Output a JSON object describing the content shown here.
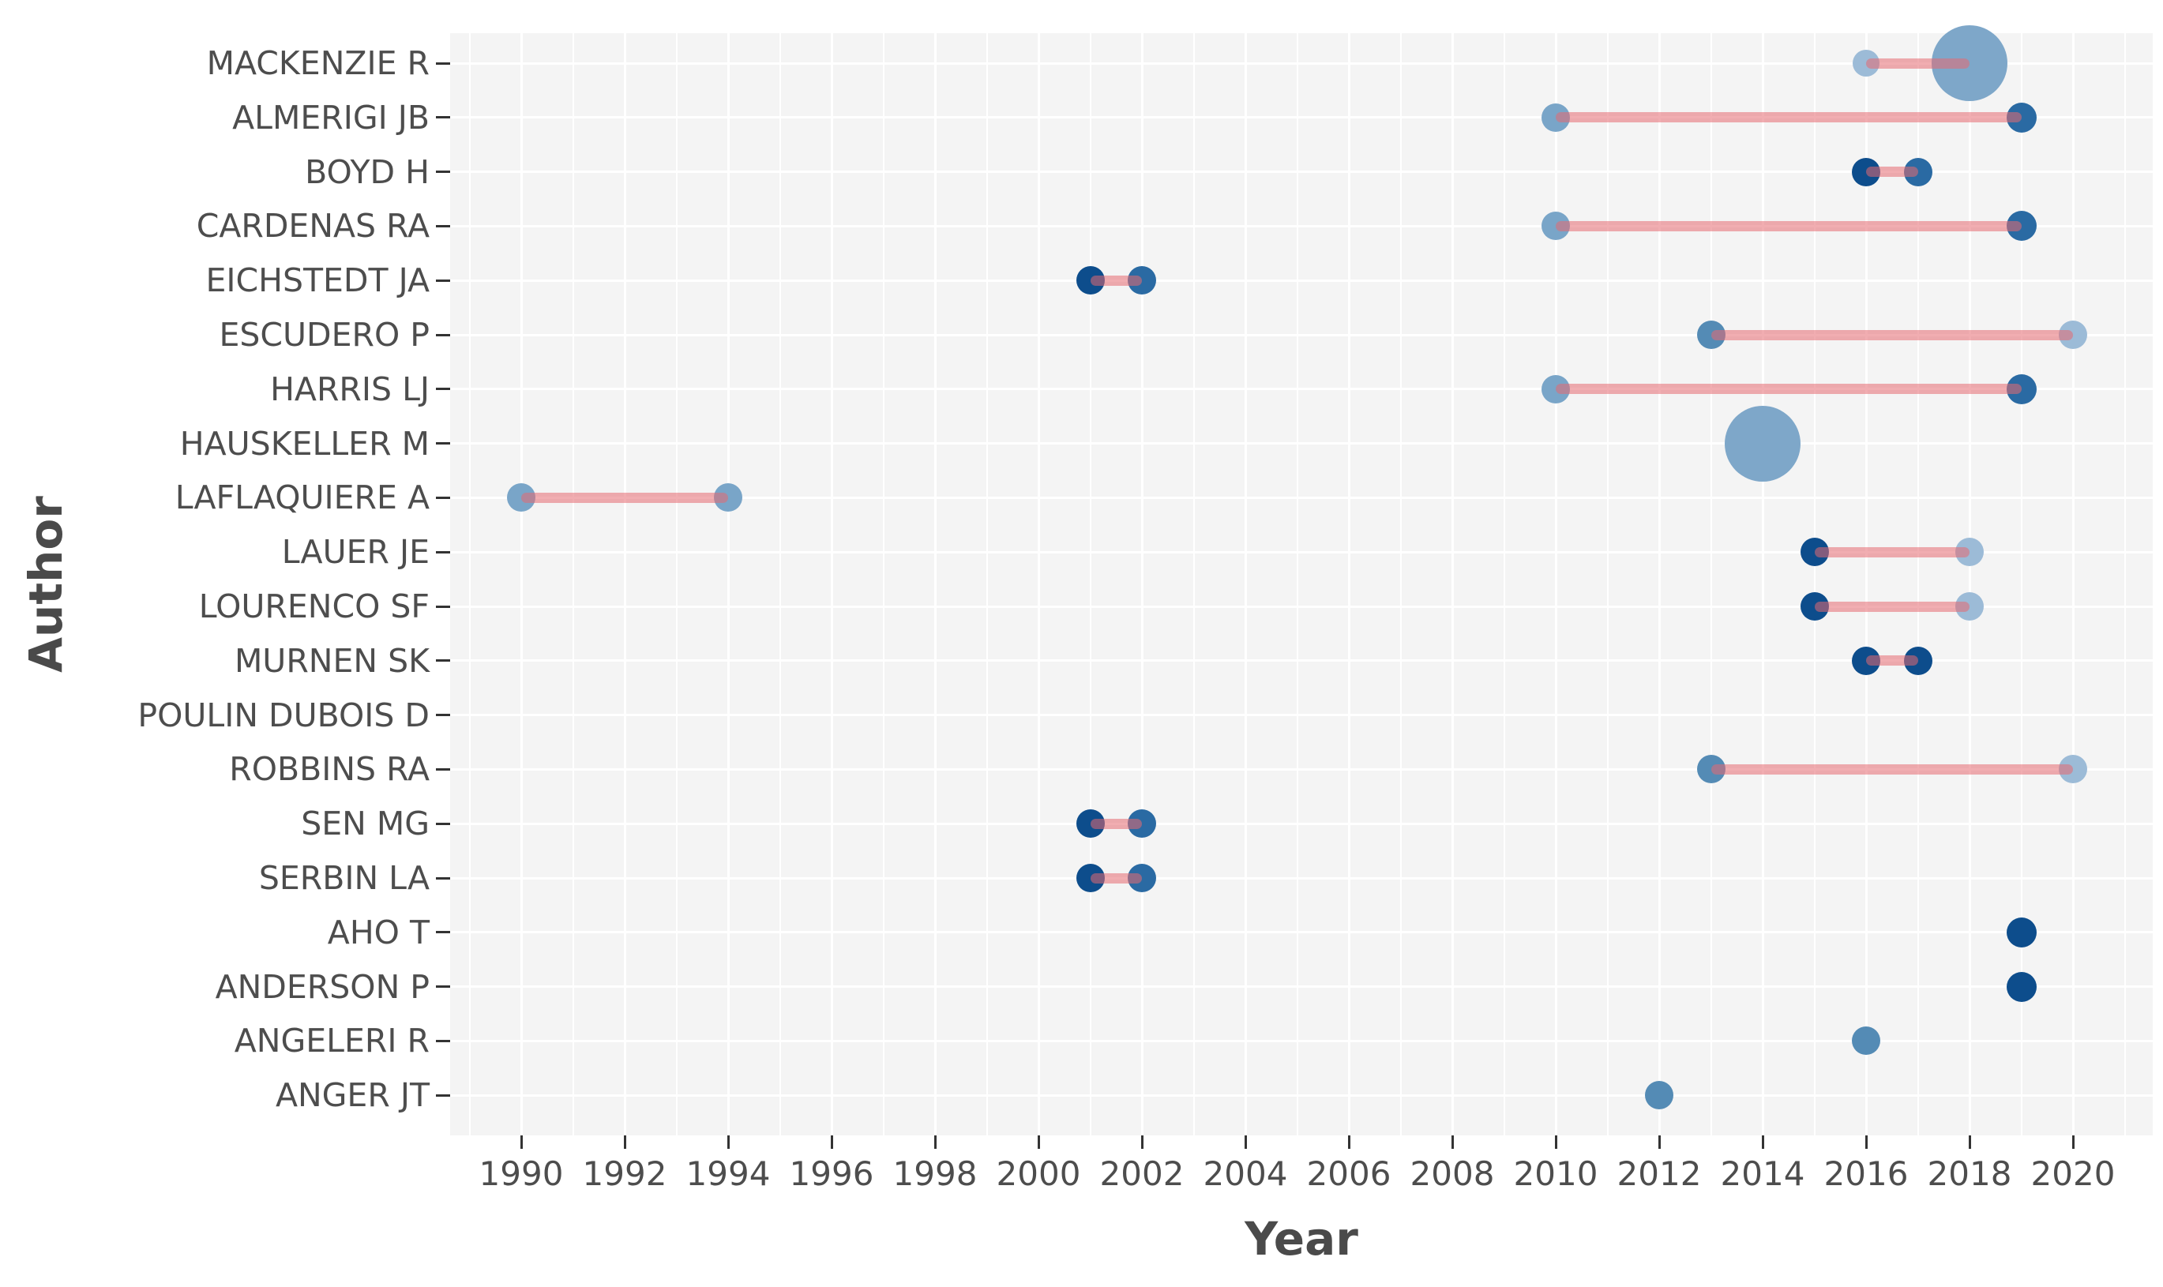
{
  "chart": {
    "x_title": "Year",
    "y_title": "Author"
  },
  "chart_data": {
    "type": "scatter",
    "title": "",
    "xlabel": "Year",
    "ylabel": "Author",
    "x_ticks": [
      1990,
      1992,
      1994,
      1996,
      1998,
      2000,
      2002,
      2004,
      2006,
      2008,
      2010,
      2012,
      2014,
      2016,
      2018,
      2020
    ],
    "xlim": [
      1988.6,
      2021.5
    ],
    "grid": "white major/minor vertical per year, white horizontal per author row, on light grey panel",
    "legend_position": "none",
    "palette": {
      "light": "#9cbbd7",
      "mediumLight": "#79a5c8",
      "medium": "#548bb5",
      "dark": "#2a6aa3",
      "navy": "#0d4d8c",
      "bubble": "#7ea7c9",
      "line": "rgba(229,106,113,0.55)",
      "panel": "#f4f4f4",
      "gridline": "#ffffff",
      "tick": "#333333",
      "text": "#4d4d4d"
    },
    "authors": [
      {
        "name": "MACKENZIE R",
        "points": [
          {
            "year": 2016,
            "r": 17,
            "color": "light"
          },
          {
            "year": 2018,
            "r": 48,
            "color": "bubble"
          }
        ],
        "line": [
          2016,
          2018
        ]
      },
      {
        "name": "ALMERIGI JB",
        "points": [
          {
            "year": 2010,
            "r": 18,
            "color": "mediumLight"
          },
          {
            "year": 2019,
            "r": 19,
            "color": "dark"
          }
        ],
        "line": [
          2010,
          2019
        ]
      },
      {
        "name": "BOYD H",
        "points": [
          {
            "year": 2016,
            "r": 18,
            "color": "navy"
          },
          {
            "year": 2017,
            "r": 18,
            "color": "dark"
          }
        ],
        "line": [
          2016,
          2017
        ]
      },
      {
        "name": "CARDENAS RA",
        "points": [
          {
            "year": 2010,
            "r": 18,
            "color": "mediumLight"
          },
          {
            "year": 2019,
            "r": 19,
            "color": "dark"
          }
        ],
        "line": [
          2010,
          2019
        ]
      },
      {
        "name": "EICHSTEDT JA",
        "points": [
          {
            "year": 2001,
            "r": 18,
            "color": "navy"
          },
          {
            "year": 2002,
            "r": 18,
            "color": "dark"
          }
        ],
        "line": [
          2001,
          2002
        ]
      },
      {
        "name": "ESCUDERO P",
        "points": [
          {
            "year": 2013,
            "r": 18,
            "color": "medium"
          },
          {
            "year": 2020,
            "r": 18,
            "color": "light"
          }
        ],
        "line": [
          2013,
          2020
        ]
      },
      {
        "name": "HARRIS LJ",
        "points": [
          {
            "year": 2010,
            "r": 18,
            "color": "mediumLight"
          },
          {
            "year": 2019,
            "r": 19,
            "color": "dark"
          }
        ],
        "line": [
          2010,
          2019
        ]
      },
      {
        "name": "HAUSKELLER M",
        "points": [
          {
            "year": 2014,
            "r": 48,
            "color": "bubble"
          }
        ],
        "line": null
      },
      {
        "name": "LAFLAQUIERE A",
        "points": [
          {
            "year": 1990,
            "r": 18,
            "color": "mediumLight"
          },
          {
            "year": 1994,
            "r": 18,
            "color": "mediumLight"
          }
        ],
        "line": [
          1990,
          1994
        ]
      },
      {
        "name": "LAUER JE",
        "points": [
          {
            "year": 2015,
            "r": 18,
            "color": "navy"
          },
          {
            "year": 2018,
            "r": 18,
            "color": "light"
          }
        ],
        "line": [
          2015,
          2018
        ]
      },
      {
        "name": "LOURENCO SF",
        "points": [
          {
            "year": 2015,
            "r": 18,
            "color": "navy"
          },
          {
            "year": 2018,
            "r": 18,
            "color": "light"
          }
        ],
        "line": [
          2015,
          2018
        ]
      },
      {
        "name": "MURNEN SK",
        "points": [
          {
            "year": 2016,
            "r": 18,
            "color": "navy"
          },
          {
            "year": 2017,
            "r": 18,
            "color": "navy"
          }
        ],
        "line": [
          2016,
          2017
        ]
      },
      {
        "name": "POULIN DUBOIS D",
        "points": [],
        "line": null
      },
      {
        "name": "ROBBINS RA",
        "points": [
          {
            "year": 2013,
            "r": 18,
            "color": "medium"
          },
          {
            "year": 2020,
            "r": 18,
            "color": "light"
          }
        ],
        "line": [
          2013,
          2020
        ]
      },
      {
        "name": "SEN MG",
        "points": [
          {
            "year": 2001,
            "r": 18,
            "color": "navy"
          },
          {
            "year": 2002,
            "r": 18,
            "color": "dark"
          }
        ],
        "line": [
          2001,
          2002
        ]
      },
      {
        "name": "SERBIN LA",
        "points": [
          {
            "year": 2001,
            "r": 18,
            "color": "navy"
          },
          {
            "year": 2002,
            "r": 18,
            "color": "dark"
          }
        ],
        "line": [
          2001,
          2002
        ]
      },
      {
        "name": "AHO T",
        "points": [
          {
            "year": 2019,
            "r": 19,
            "color": "navy"
          }
        ],
        "line": null
      },
      {
        "name": "ANDERSON P",
        "points": [
          {
            "year": 2019,
            "r": 19,
            "color": "navy"
          }
        ],
        "line": null
      },
      {
        "name": "ANGELERI R",
        "points": [
          {
            "year": 2016,
            "r": 18,
            "color": "medium"
          }
        ],
        "line": null
      },
      {
        "name": "ANGER JT",
        "points": [
          {
            "year": 2012,
            "r": 18,
            "color": "medium"
          }
        ],
        "line": null
      }
    ]
  }
}
